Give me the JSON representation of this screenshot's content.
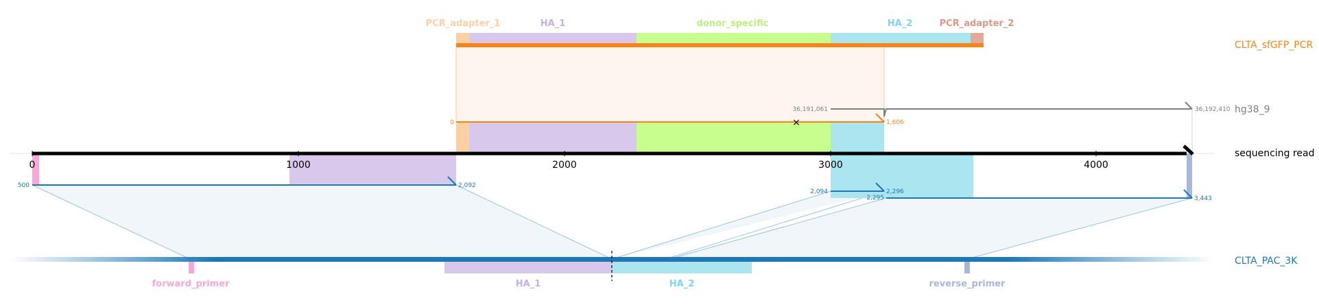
{
  "top_features": [
    {
      "name": "PCR_adapter_1",
      "label_color": "#fdd0a2",
      "fill": "#fdd0a2"
    },
    {
      "name": "HA_1",
      "label_color": "#c5b0e5",
      "fill": "#d8c8ec"
    },
    {
      "name": "donor_specific",
      "label_color": "#b8f27a",
      "fill": "#c8fe8e"
    },
    {
      "name": "HA_2",
      "label_color": "#7fd6ec",
      "fill": "#abe5ef"
    },
    {
      "name": "PCR_adapter_2",
      "label_color": "#d99888",
      "fill": "#e5a898"
    }
  ],
  "bottom_features": [
    {
      "name": "forward_primer",
      "color": "#f7a8d8"
    },
    {
      "name": "HA_1",
      "color": "#c5b0e5"
    },
    {
      "name": "HA_2",
      "color": "#7fd6ec"
    },
    {
      "name": "reverse_primer",
      "color": "#a9b7db"
    }
  ],
  "track_labels": {
    "pcr": "CLTA_sfGFP_PCR",
    "genome": "hg38_9",
    "read": "sequencing read",
    "pac": "CLTA_PAC_3K"
  },
  "colors": {
    "pcr": "#f58518",
    "genome": "#7f7f7f",
    "read": "#000000",
    "pac": "#1f77b4"
  },
  "axis": {
    "ticks": [
      "0",
      "1000",
      "2000",
      "3000",
      "4000"
    ]
  },
  "alignment_labels": {
    "pcr_start": "0",
    "pcr_end": "1,606",
    "genome_start": "36,191,061",
    "genome_end": "36,192,410",
    "pac1_start": "500",
    "pac1_end": "2,092",
    "pac2_start": "2,094",
    "pac2_end": "2,295",
    "pac3_start": "2,296",
    "pac3_end": "3,443"
  },
  "markers": {
    "cross": "×"
  }
}
